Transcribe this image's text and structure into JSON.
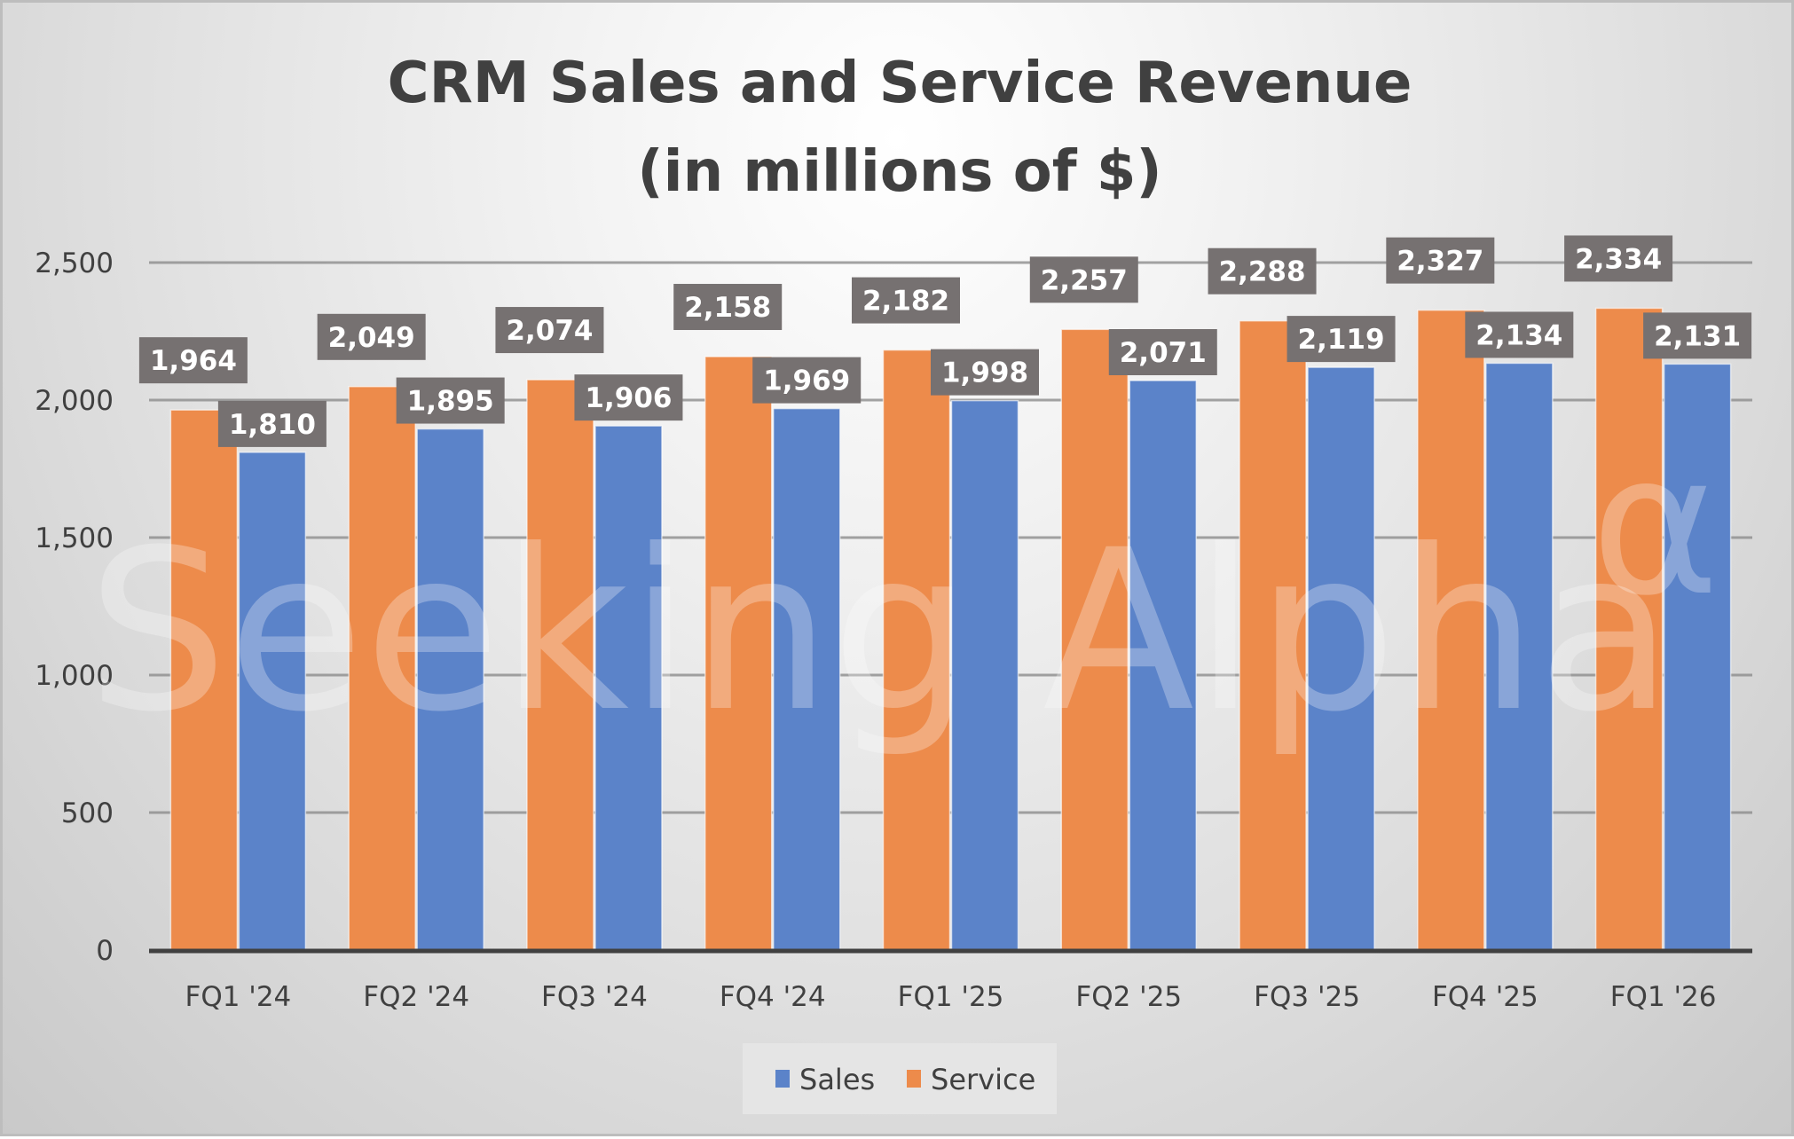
{
  "chart_data": {
    "type": "bar",
    "title": "CRM Sales and Service Revenue",
    "subtitle": "(in millions of $)",
    "xlabel": "",
    "ylabel": "",
    "ylim": [
      0,
      2500
    ],
    "yticks": [
      0,
      500,
      1000,
      1500,
      2000,
      2500
    ],
    "ytick_labels": [
      "0",
      "500",
      "1,000",
      "1,500",
      "2,000",
      "2,500"
    ],
    "grid": true,
    "legend_position": "bottom",
    "categories": [
      "FQ1 '24",
      "FQ2 '24",
      "FQ3 '24",
      "FQ4 '24",
      "FQ1 '25",
      "FQ2 '25",
      "FQ3 '25",
      "FQ4 '25",
      "FQ1 '26"
    ],
    "series": [
      {
        "name": "Service",
        "color": "#ED8B4B",
        "values": [
          1964,
          2049,
          2074,
          2158,
          2182,
          2257,
          2288,
          2327,
          2334
        ],
        "labels": [
          "1,964",
          "2,049",
          "2,074",
          "2,158",
          "2,182",
          "2,257",
          "2,288",
          "2,327",
          "2,334"
        ]
      },
      {
        "name": "Sales",
        "color": "#5B83C9",
        "values": [
          1810,
          1895,
          1906,
          1969,
          1998,
          2071,
          2119,
          2134,
          2131
        ],
        "labels": [
          "1,810",
          "1,895",
          "1,906",
          "1,969",
          "1,998",
          "2,071",
          "2,119",
          "2,134",
          "2,131"
        ]
      }
    ],
    "legend_order": [
      "Sales",
      "Service"
    ],
    "data_label_bg": "#767171",
    "watermark": "Seeking Alpha",
    "watermark_symbol": "α"
  }
}
